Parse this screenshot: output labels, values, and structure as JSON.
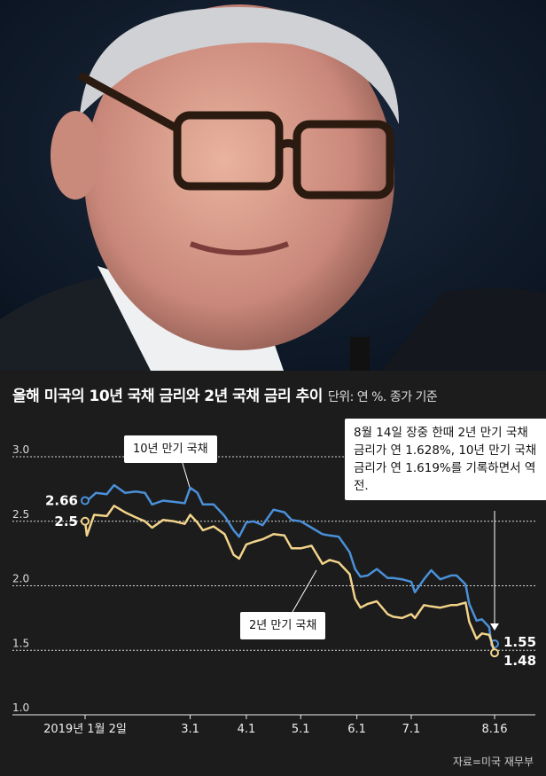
{
  "chart_data": {
    "type": "line",
    "title": "올해 미국의 10년 국채 금리와 2년 국채 금리 추이",
    "unit_note": "단위: 연 %. 종가 기준",
    "xlabel": "",
    "ylabel": "",
    "ylim": [
      1.0,
      3.0
    ],
    "yticks": [
      "3.0",
      "2.5",
      "2.0",
      "1.5",
      "1.0"
    ],
    "xticks": [
      {
        "label": "2019년 1월 2일",
        "x": "2019-01-02"
      },
      {
        "label": "3.1",
        "x": "2019-03-01"
      },
      {
        "label": "4.1",
        "x": "2019-04-01"
      },
      {
        "label": "5.1",
        "x": "2019-05-01"
      },
      {
        "label": "6.1",
        "x": "2019-06-01"
      },
      {
        "label": "7.1",
        "x": "2019-07-01"
      },
      {
        "label": "8.16",
        "x": "2019-08-16"
      }
    ],
    "grid": true,
    "series": [
      {
        "name": "10년 만기 국채",
        "color": "#4a90d9",
        "start_label": "2.66",
        "end_label": "1.55",
        "points": [
          [
            "2019-01-02",
            2.66
          ],
          [
            "2019-01-04",
            2.67
          ],
          [
            "2019-01-08",
            2.72
          ],
          [
            "2019-01-14",
            2.71
          ],
          [
            "2019-01-18",
            2.78
          ],
          [
            "2019-01-24",
            2.72
          ],
          [
            "2019-01-30",
            2.73
          ],
          [
            "2019-02-04",
            2.72
          ],
          [
            "2019-02-08",
            2.63
          ],
          [
            "2019-02-14",
            2.66
          ],
          [
            "2019-02-20",
            2.65
          ],
          [
            "2019-02-26",
            2.64
          ],
          [
            "2019-03-01",
            2.76
          ],
          [
            "2019-03-05",
            2.72
          ],
          [
            "2019-03-08",
            2.63
          ],
          [
            "2019-03-14",
            2.63
          ],
          [
            "2019-03-20",
            2.54
          ],
          [
            "2019-03-25",
            2.43
          ],
          [
            "2019-03-28",
            2.38
          ],
          [
            "2019-04-01",
            2.49
          ],
          [
            "2019-04-05",
            2.5
          ],
          [
            "2019-04-10",
            2.47
          ],
          [
            "2019-04-16",
            2.59
          ],
          [
            "2019-04-22",
            2.57
          ],
          [
            "2019-04-26",
            2.51
          ],
          [
            "2019-05-01",
            2.5
          ],
          [
            "2019-05-07",
            2.45
          ],
          [
            "2019-05-13",
            2.4
          ],
          [
            "2019-05-17",
            2.39
          ],
          [
            "2019-05-22",
            2.38
          ],
          [
            "2019-05-28",
            2.26
          ],
          [
            "2019-05-31",
            2.13
          ],
          [
            "2019-06-03",
            2.07
          ],
          [
            "2019-06-07",
            2.08
          ],
          [
            "2019-06-12",
            2.13
          ],
          [
            "2019-06-18",
            2.06
          ],
          [
            "2019-06-21",
            2.06
          ],
          [
            "2019-06-26",
            2.05
          ],
          [
            "2019-07-01",
            2.03
          ],
          [
            "2019-07-03",
            1.95
          ],
          [
            "2019-07-08",
            2.05
          ],
          [
            "2019-07-12",
            2.12
          ],
          [
            "2019-07-17",
            2.05
          ],
          [
            "2019-07-23",
            2.08
          ],
          [
            "2019-07-26",
            2.08
          ],
          [
            "2019-07-31",
            2.01
          ],
          [
            "2019-08-02",
            1.86
          ],
          [
            "2019-08-06",
            1.73
          ],
          [
            "2019-08-09",
            1.74
          ],
          [
            "2019-08-13",
            1.68
          ],
          [
            "2019-08-14",
            1.58
          ],
          [
            "2019-08-16",
            1.55
          ]
        ]
      },
      {
        "name": "2년 만기 국채",
        "color": "#f2d38a",
        "start_label": "2.5",
        "end_label": "1.48",
        "points": [
          [
            "2019-01-02",
            2.5
          ],
          [
            "2019-01-03",
            2.39
          ],
          [
            "2019-01-07",
            2.55
          ],
          [
            "2019-01-14",
            2.54
          ],
          [
            "2019-01-18",
            2.62
          ],
          [
            "2019-01-24",
            2.57
          ],
          [
            "2019-01-30",
            2.53
          ],
          [
            "2019-02-04",
            2.5
          ],
          [
            "2019-02-08",
            2.45
          ],
          [
            "2019-02-14",
            2.51
          ],
          [
            "2019-02-20",
            2.5
          ],
          [
            "2019-02-26",
            2.48
          ],
          [
            "2019-03-01",
            2.55
          ],
          [
            "2019-03-05",
            2.49
          ],
          [
            "2019-03-08",
            2.43
          ],
          [
            "2019-03-14",
            2.46
          ],
          [
            "2019-03-20",
            2.4
          ],
          [
            "2019-03-25",
            2.24
          ],
          [
            "2019-03-28",
            2.21
          ],
          [
            "2019-04-01",
            2.32
          ],
          [
            "2019-04-05",
            2.34
          ],
          [
            "2019-04-10",
            2.36
          ],
          [
            "2019-04-16",
            2.4
          ],
          [
            "2019-04-22",
            2.39
          ],
          [
            "2019-04-26",
            2.29
          ],
          [
            "2019-05-01",
            2.29
          ],
          [
            "2019-05-07",
            2.31
          ],
          [
            "2019-05-13",
            2.17
          ],
          [
            "2019-05-17",
            2.2
          ],
          [
            "2019-05-22",
            2.18
          ],
          [
            "2019-05-28",
            2.09
          ],
          [
            "2019-05-31",
            1.9
          ],
          [
            "2019-06-03",
            1.83
          ],
          [
            "2019-06-07",
            1.86
          ],
          [
            "2019-06-12",
            1.88
          ],
          [
            "2019-06-18",
            1.78
          ],
          [
            "2019-06-21",
            1.76
          ],
          [
            "2019-06-26",
            1.75
          ],
          [
            "2019-07-01",
            1.78
          ],
          [
            "2019-07-03",
            1.75
          ],
          [
            "2019-07-08",
            1.85
          ],
          [
            "2019-07-12",
            1.84
          ],
          [
            "2019-07-17",
            1.83
          ],
          [
            "2019-07-23",
            1.85
          ],
          [
            "2019-07-26",
            1.85
          ],
          [
            "2019-07-31",
            1.87
          ],
          [
            "2019-08-02",
            1.72
          ],
          [
            "2019-08-06",
            1.59
          ],
          [
            "2019-08-09",
            1.63
          ],
          [
            "2019-08-13",
            1.62
          ],
          [
            "2019-08-14",
            1.58
          ],
          [
            "2019-08-16",
            1.48
          ]
        ]
      }
    ],
    "annotation": "8월 14일 장중 한때 2년 만기 국채 금리가 연 1.628%, 10년 만기 국채 금리가 연 1.619%를 기록하면서 역전.",
    "source": "자료=미국 재무부"
  }
}
